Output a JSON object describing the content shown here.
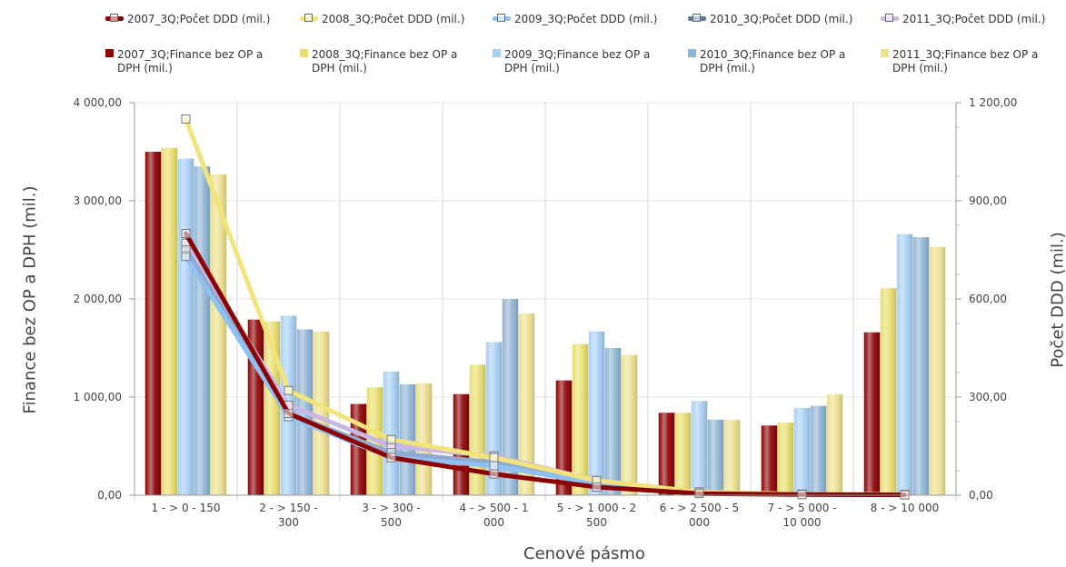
{
  "chart_data": {
    "type": "bar",
    "xlabel": "Cenové pásmo",
    "ylabel": "Finance bez OP a DPH (mil.)",
    "y2label": "Počet DDD (mil.)",
    "categories": [
      [
        "1 - > 0 - 150"
      ],
      [
        "2 - > 150 -",
        "300"
      ],
      [
        "3 - > 300 -",
        "500"
      ],
      [
        "4 - > 500 - 1",
        "000"
      ],
      [
        "5 - > 1 000 - 2",
        "500"
      ],
      [
        "6 - > 2 500 - 5",
        "000"
      ],
      [
        "7 - > 5 000 -",
        "10 000"
      ],
      [
        "8 - > 10 000"
      ]
    ],
    "ylim": [
      0,
      4000
    ],
    "y2lim": [
      0,
      1200
    ],
    "y_ticks": [
      "0,00",
      "1 000,00",
      "2 000,00",
      "3 000,00",
      "4 000,00"
    ],
    "y2_ticks": [
      "0,00",
      "300,00",
      "600,00",
      "900,00",
      "1 200,00"
    ],
    "grid": true,
    "legend_position": "top",
    "bar_series": [
      {
        "name": "2007_3Q;Finance bez OP a DPH (mil.)",
        "color": "#8b0000",
        "values": [
          3500,
          1790,
          930,
          1030,
          1170,
          840,
          710,
          1660
        ]
      },
      {
        "name": "2008_3Q;Finance bez OP a DPH (mil.)",
        "color": "#e8de6e",
        "values": [
          3540,
          1770,
          1100,
          1330,
          1540,
          840,
          740,
          2110
        ]
      },
      {
        "name": "2009_3Q;Finance bez OP a DPH (mil.)",
        "color": "#a8d0f5",
        "values": [
          3430,
          1830,
          1260,
          1560,
          1670,
          960,
          890,
          2660
        ]
      },
      {
        "name": "2010_3Q;Finance bez OP a DPH (mil.)",
        "color": "#8fb4d4",
        "values": [
          3350,
          1690,
          1130,
          2000,
          1500,
          770,
          910,
          2630
        ]
      },
      {
        "name": "2011_3Q;Finance bez OP a DPH (mil.)",
        "color": "#ece08c",
        "values": [
          3270,
          1670,
          1140,
          1850,
          1430,
          770,
          1030,
          2530
        ]
      }
    ],
    "line_series": [
      {
        "name": "2011_3Q;Počet DDD (mil.)",
        "color": "#c9b8e6",
        "values": [
          770,
          275,
          150,
          120,
          45,
          8,
          3,
          2
        ]
      },
      {
        "name": "2010_3Q;Počet DDD (mil.)",
        "color": "#8faad0",
        "values": [
          750,
          250,
          130,
          100,
          40,
          8,
          3,
          2
        ]
      },
      {
        "name": "2009_3Q;Počet DDD (mil.)",
        "color": "#8fc1f2",
        "values": [
          730,
          240,
          115,
          90,
          35,
          8,
          3,
          2
        ]
      },
      {
        "name": "2008_3Q;Počet DDD (mil.)",
        "color": "#f2e37a",
        "values": [
          1150,
          320,
          170,
          115,
          45,
          10,
          3,
          2
        ]
      },
      {
        "name": "2007_3Q;Počet DDD (mil.)",
        "color": "#8b0000",
        "values": [
          800,
          250,
          115,
          65,
          25,
          5,
          2,
          1
        ]
      }
    ],
    "legend_lines": [
      {
        "name": "2007_3Q;Počet DDD (mil.)",
        "color": "#8b0000"
      },
      {
        "name": "2008_3Q;Počet DDD (mil.)",
        "color": "#f2e37a"
      },
      {
        "name": "2009_3Q;Počet DDD (mil.)",
        "color": "#8fc1f2"
      },
      {
        "name": "2010_3Q;Počet DDD (mil.)",
        "color": "#5b7aa8"
      },
      {
        "name": "2011_3Q;Počet DDD (mil.)",
        "color": "#c9b8e6"
      }
    ],
    "legend_bars": [
      {
        "line1": "2007_3Q;Finance bez OP a",
        "line2": "DPH (mil.)",
        "color": "#8b0000"
      },
      {
        "line1": "2008_3Q;Finance bez OP a",
        "line2": "DPH (mil.)",
        "color": "#e8de6e"
      },
      {
        "line1": "2009_3Q;Finance bez OP a",
        "line2": "DPH (mil.)",
        "color": "#a8d0f5"
      },
      {
        "line1": "2010_3Q;Finance bez OP a",
        "line2": "DPH (mil.)",
        "color": "#8fb4d4"
      },
      {
        "line1": "2011_3Q;Finance bez OP a",
        "line2": "DPH (mil.)",
        "color": "#ece08c"
      }
    ]
  }
}
